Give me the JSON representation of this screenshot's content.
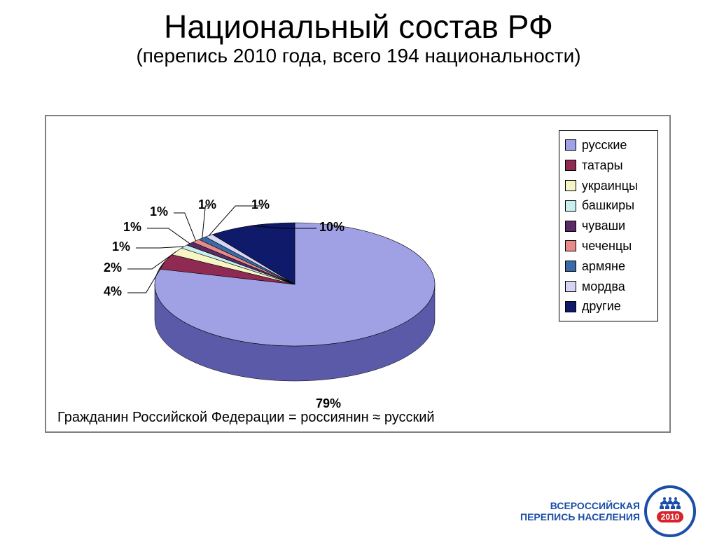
{
  "title": "Национальный состав РФ",
  "subtitle": "(перепись 2010 года, всего 194 национальности)",
  "caption": "Гражданин Российской Федерации = россиянин ≈ русский",
  "logo": {
    "line1": "ВСЕРОССИЙСКАЯ",
    "line2": "ПЕРЕПИСЬ НАСЕЛЕНИЯ",
    "year": "2010",
    "border_color": "#1b4ea8",
    "badge_color": "#d8232a"
  },
  "chart": {
    "type": "pie-3d",
    "background_color": "#ffffff",
    "border_color": "#808080",
    "legend_border": "#000000",
    "label_fontsize": 18,
    "legend_fontsize": 18,
    "pie_side_shade": "#4b4f8a",
    "pie_outline": "#000000",
    "series": [
      {
        "name": "русские",
        "value": 79,
        "label": "79%",
        "color": "#a0a0e4",
        "side_color": "#5a5aa8"
      },
      {
        "name": "татары",
        "value": 4,
        "label": "4%",
        "color": "#8f2a53",
        "side_color": "#5e1c37"
      },
      {
        "name": "украинцы",
        "value": 2,
        "label": "2%",
        "color": "#f7f4c6",
        "side_color": "#c8c49a"
      },
      {
        "name": "башкиры",
        "value": 1,
        "label": "1%",
        "color": "#c8f0ee",
        "side_color": "#9ac6c4"
      },
      {
        "name": "чуваши",
        "value": 1,
        "label": "1%",
        "color": "#5a2a66",
        "side_color": "#3c1c44"
      },
      {
        "name": "чеченцы",
        "value": 1,
        "label": "1%",
        "color": "#e98a8a",
        "side_color": "#c46a6a"
      },
      {
        "name": "армяне",
        "value": 1,
        "label": "1%",
        "color": "#3a6aa8",
        "side_color": "#2a4d7a"
      },
      {
        "name": "мордва",
        "value": 1,
        "label": "1%",
        "color": "#d6d6f4",
        "side_color": "#b0b0d0"
      },
      {
        "name": "другие",
        "value": 10,
        "label": "10%",
        "color": "#0f1a6a",
        "side_color": "#0a1248"
      }
    ]
  }
}
